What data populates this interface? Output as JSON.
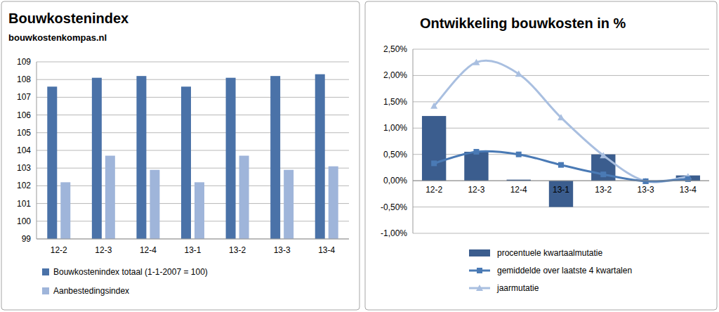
{
  "chart_data": [
    {
      "type": "bar",
      "title": "Bouwkostenindex",
      "subtitle": "bouwkostenkompas.nl",
      "categories": [
        "12-2",
        "12-3",
        "12-4",
        "13-1",
        "13-2",
        "13-3",
        "13-4"
      ],
      "series": [
        {
          "name": "Bouwkostenindex totaal (1-1-2007 = 100)",
          "color": "#4a72a8",
          "values": [
            107.6,
            108.1,
            108.2,
            107.6,
            108.1,
            108.2,
            108.3
          ]
        },
        {
          "name": "Aanbestedingsindex",
          "color": "#9fb5da",
          "values": [
            102.2,
            103.7,
            102.9,
            102.2,
            103.7,
            102.9,
            103.1
          ]
        }
      ],
      "ylim": [
        99,
        109
      ],
      "yticks": [
        99,
        100,
        101,
        102,
        103,
        104,
        105,
        106,
        107,
        108,
        109
      ],
      "grid": true,
      "legend": "bottom"
    },
    {
      "type": "bar",
      "title": "Ontwikkeling bouwkosten in %",
      "categories": [
        "12-2",
        "12-3",
        "12-4",
        "13-1",
        "13-2",
        "13-3",
        "13-4"
      ],
      "series": [
        {
          "name": "procentuele kwartaalmutatie",
          "type": "bar",
          "color": "#3b5d8e",
          "values": [
            1.23,
            0.55,
            0.02,
            -0.5,
            0.5,
            0.0,
            0.1
          ]
        },
        {
          "name": "gemiddelde over laatste  4 kwartalen",
          "type": "line",
          "color": "#4a7ab5",
          "marker": "square",
          "line_style": "solid",
          "values": [
            0.33,
            0.55,
            0.5,
            0.3,
            0.12,
            -0.01,
            0.03
          ]
        },
        {
          "name": "jaarmutatie",
          "type": "line",
          "color": "#a9bfe0",
          "marker": "triangle",
          "line_style": "solid",
          "values": [
            1.42,
            2.25,
            2.03,
            1.2,
            0.48,
            -0.01,
            0.08
          ]
        }
      ],
      "ylim": [
        -1,
        2.5
      ],
      "yticks": [
        {
          "value": -1,
          "label": "-1,00%"
        },
        {
          "value": -0.5,
          "label": "-0,50%"
        },
        {
          "value": 0,
          "label": "0,00%"
        },
        {
          "value": 0.5,
          "label": "0,50%"
        },
        {
          "value": 1,
          "label": "1,00%"
        },
        {
          "value": 1.5,
          "label": "1,50%"
        },
        {
          "value": 2,
          "label": "2,00%"
        },
        {
          "value": 2.5,
          "label": "2,50%"
        }
      ],
      "grid": true,
      "legend": "bottom"
    }
  ]
}
